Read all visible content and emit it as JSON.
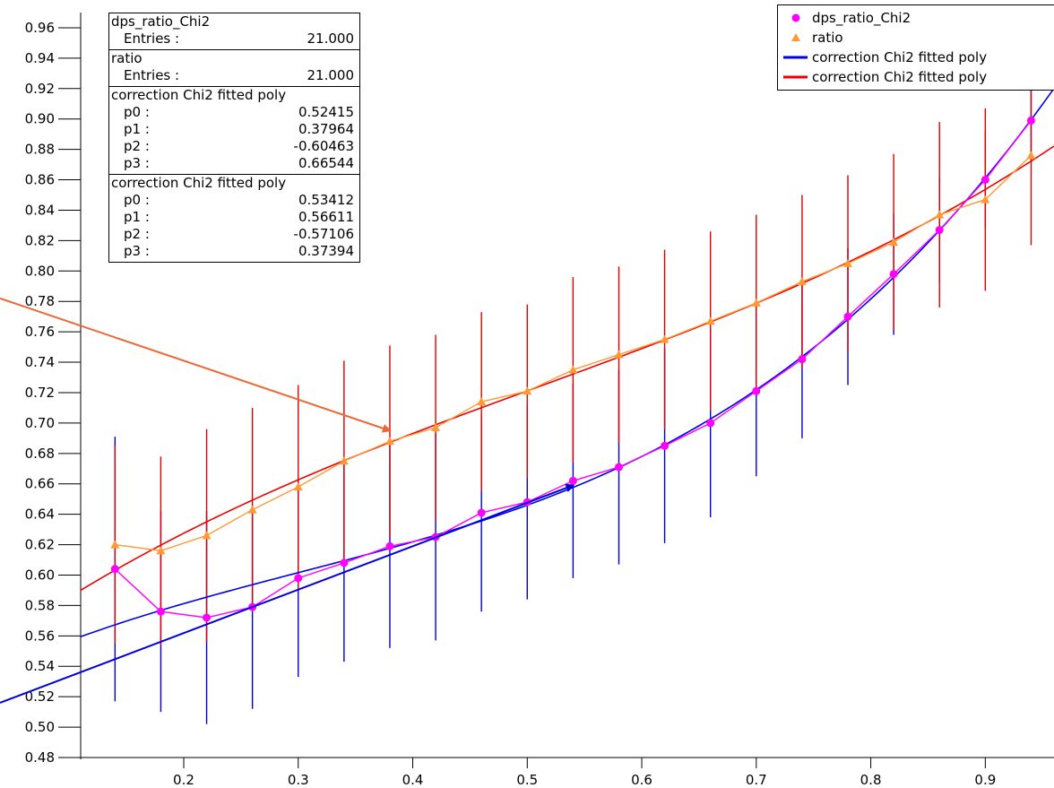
{
  "colors": {
    "series_a": "#ff00ff",
    "series_b": "#ff9933",
    "fit_a": "#0000ee",
    "fit_b": "#ee0000",
    "err_a": "#0000cc",
    "err_b": "#dd0000",
    "arrow_orange": "#ee6633",
    "arrow_blue": "#0000dd"
  },
  "stats": [
    {
      "title": "dps_ratio_Chi2",
      "rows": [
        {
          "label": "Entries :",
          "value": "21.000"
        }
      ]
    },
    {
      "title": "ratio",
      "rows": [
        {
          "label": "Entries :",
          "value": "21.000"
        }
      ]
    },
    {
      "title": "correction  Chi2 fitted poly",
      "rows": [
        {
          "label": "p0 :",
          "value": "0.52415"
        },
        {
          "label": "p1 :",
          "value": "0.37964"
        },
        {
          "label": "p2 :",
          "value": "-0.60463"
        },
        {
          "label": "p3 :",
          "value": "0.66544"
        }
      ]
    },
    {
      "title": "correction  Chi2 fitted poly",
      "rows": [
        {
          "label": "p0 :",
          "value": "0.53412"
        },
        {
          "label": "p1 :",
          "value": "0.56611"
        },
        {
          "label": "p2 :",
          "value": "-0.57106"
        },
        {
          "label": "p3 :",
          "value": "0.37394"
        }
      ]
    }
  ],
  "legend": [
    {
      "label": "dps_ratio_Chi2",
      "symbol": "circle",
      "color": "#ff00ff"
    },
    {
      "label": "ratio",
      "symbol": "triangle",
      "color": "#ff9933"
    },
    {
      "label": "correction  Chi2 fitted poly",
      "symbol": "line",
      "color": "#0000ee"
    },
    {
      "label": "correction  Chi2 fitted poly",
      "symbol": "line",
      "color": "#ee0000"
    }
  ],
  "chart_data": {
    "type": "scatter",
    "xlim": [
      0.11,
      0.96
    ],
    "ylim": [
      0.48,
      0.97
    ],
    "x_ticks": [
      "0.2",
      "0.3",
      "0.4",
      "0.5",
      "0.6",
      "0.7",
      "0.8",
      "0.9"
    ],
    "y_ticks": [
      "0.48",
      "0.50",
      "0.52",
      "0.54",
      "0.56",
      "0.58",
      "0.60",
      "0.62",
      "0.64",
      "0.66",
      "0.68",
      "0.70",
      "0.72",
      "0.74",
      "0.76",
      "0.78",
      "0.80",
      "0.82",
      "0.84",
      "0.86",
      "0.88",
      "0.90",
      "0.92",
      "0.94",
      "0.96"
    ],
    "series": [
      {
        "name": "dps_ratio_Chi2",
        "marker": "circle",
        "x": [
          0.14,
          0.18,
          0.22,
          0.26,
          0.3,
          0.34,
          0.38,
          0.42,
          0.46,
          0.5,
          0.54,
          0.58,
          0.62,
          0.66,
          0.7,
          0.74,
          0.78,
          0.82,
          0.86,
          0.9,
          0.94
        ],
        "y": [
          0.604,
          0.576,
          0.572,
          0.579,
          0.598,
          0.608,
          0.619,
          0.625,
          0.641,
          0.648,
          0.662,
          0.671,
          0.685,
          0.7,
          0.721,
          0.742,
          0.77,
          0.798,
          0.827,
          0.86,
          0.899
        ],
        "err": [
          0.087,
          0.066,
          0.07,
          0.067,
          0.065,
          0.065,
          0.067,
          0.068,
          0.065,
          0.064,
          0.064,
          0.064,
          0.064,
          0.062,
          0.056,
          0.052,
          0.045,
          0.04,
          0.035,
          0.032,
          0.025
        ]
      },
      {
        "name": "ratio",
        "marker": "triangle",
        "x": [
          0.14,
          0.18,
          0.22,
          0.26,
          0.3,
          0.34,
          0.38,
          0.42,
          0.46,
          0.5,
          0.54,
          0.58,
          0.62,
          0.66,
          0.7,
          0.74,
          0.78,
          0.82,
          0.86,
          0.9,
          0.94
        ],
        "y": [
          0.62,
          0.616,
          0.626,
          0.643,
          0.658,
          0.675,
          0.688,
          0.697,
          0.714,
          0.721,
          0.735,
          0.745,
          0.755,
          0.767,
          0.779,
          0.793,
          0.805,
          0.819,
          0.837,
          0.847,
          0.876
        ],
        "err": [
          0.065,
          0.062,
          0.07,
          0.067,
          0.067,
          0.066,
          0.063,
          0.061,
          0.059,
          0.057,
          0.061,
          0.058,
          0.059,
          0.059,
          0.058,
          0.057,
          0.058,
          0.058,
          0.061,
          0.06,
          0.059
        ]
      }
    ],
    "fits": [
      {
        "name": "correction  Chi2 fitted poly",
        "color": "#0000ee",
        "p": [
          0.52415,
          0.37964,
          -0.60463,
          0.66544
        ]
      },
      {
        "name": "correction  Chi2 fitted poly",
        "color": "#ee0000",
        "p": [
          0.53412,
          0.56611,
          -0.57106,
          0.37394
        ]
      }
    ],
    "arrows": [
      {
        "color": "#ee6633",
        "from": [
          0.11,
          0.782
        ],
        "to": [
          0.38,
          0.695
        ]
      },
      {
        "color": "#0000dd",
        "from": [
          0.11,
          0.516
        ],
        "to": [
          0.54,
          0.659
        ]
      }
    ],
    "grid": false,
    "legend_position": "top-right"
  }
}
